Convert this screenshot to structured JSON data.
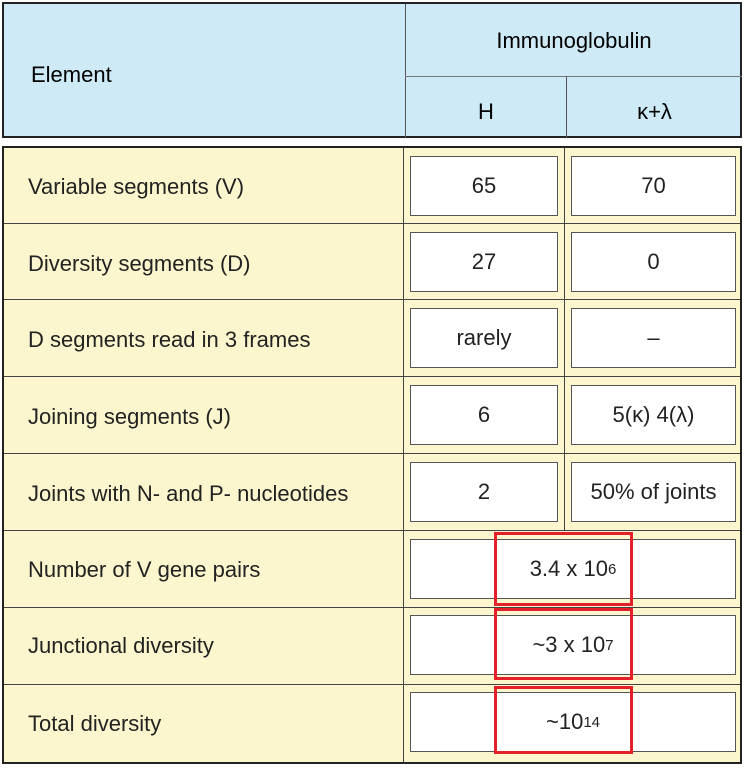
{
  "header": {
    "element": "Element",
    "immunoglobulin": "Immunoglobulin",
    "h": "H",
    "kl": "κ+λ"
  },
  "rows": [
    {
      "label": "Variable segments (V)",
      "h": "65",
      "kl": "70"
    },
    {
      "label": "Diversity segments (D)",
      "h": "27",
      "kl": "0"
    },
    {
      "label": "D segments read in 3 frames",
      "h": "rarely",
      "kl": "–"
    },
    {
      "label": "Joining segments (J)",
      "h": "6",
      "kl": "5(κ) 4(λ)"
    },
    {
      "label": "Joints with N- and P- nucleotides",
      "h": "2",
      "kl": "50% of joints"
    }
  ],
  "merged_rows": [
    {
      "label": "Number of V gene pairs",
      "base": "3.4 x 10",
      "exp": "6"
    },
    {
      "label": "Junctional diversity",
      "base": "~3 x 10",
      "exp": "7"
    },
    {
      "label": "Total diversity",
      "base": "~10",
      "exp": "14"
    }
  ],
  "colors": {
    "header_bg": "#cdeaf6",
    "body_bg": "#fbf6cd",
    "highlight": "#e5202a"
  }
}
